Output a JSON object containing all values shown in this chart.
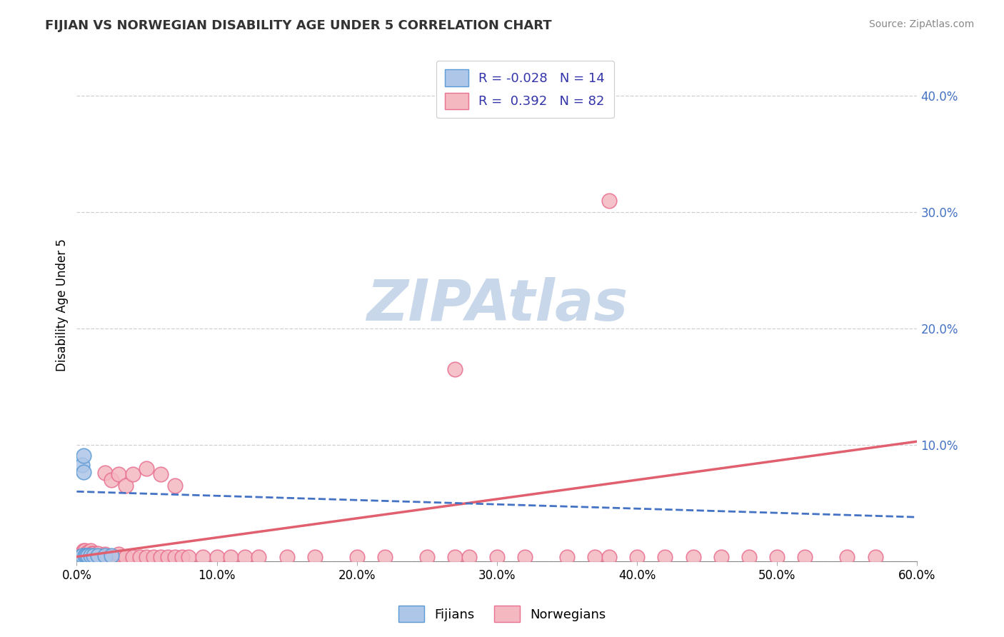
{
  "title": "FIJIAN VS NORWEGIAN DISABILITY AGE UNDER 5 CORRELATION CHART",
  "source": "Source: ZipAtlas.com",
  "ylabel": "Disability Age Under 5",
  "xlim": [
    0.0,
    0.6
  ],
  "ylim": [
    0.0,
    0.44
  ],
  "fijian_color": "#aec6e8",
  "fijian_edge_color": "#5b9bd5",
  "norwegian_color": "#f4b8c1",
  "norwegian_edge_color": "#e87090",
  "fijian_R": -0.028,
  "fijian_N": 14,
  "norwegian_R": 0.392,
  "norwegian_N": 82,
  "fijian_line_color": "#4472c4",
  "norwegian_line_color": "#e06070",
  "background_color": "#ffffff",
  "grid_color": "#bbbbbb",
  "watermark": "ZIPAtlas",
  "watermark_color": "#c8d8ea",
  "legend_label_color": "#3333aa",
  "fij_x": [
    0.002,
    0.003,
    0.004,
    0.004,
    0.005,
    0.005,
    0.006,
    0.007,
    0.008,
    0.01,
    0.012,
    0.015,
    0.02,
    0.025
  ],
  "fij_y": [
    0.004,
    0.004,
    0.005,
    0.083,
    0.077,
    0.091,
    0.005,
    0.005,
    0.005,
    0.005,
    0.005,
    0.005,
    0.005,
    0.005
  ],
  "nor_x": [
    0.002,
    0.003,
    0.003,
    0.004,
    0.004,
    0.005,
    0.005,
    0.005,
    0.006,
    0.006,
    0.006,
    0.007,
    0.007,
    0.008,
    0.008,
    0.009,
    0.009,
    0.01,
    0.01,
    0.01,
    0.011,
    0.011,
    0.012,
    0.012,
    0.013,
    0.015,
    0.015,
    0.016,
    0.017,
    0.018,
    0.02,
    0.02,
    0.02,
    0.022,
    0.025,
    0.025,
    0.03,
    0.03,
    0.03,
    0.035,
    0.035,
    0.04,
    0.04,
    0.045,
    0.05,
    0.05,
    0.055,
    0.06,
    0.06,
    0.065,
    0.07,
    0.07,
    0.075,
    0.08,
    0.09,
    0.1,
    0.11,
    0.12,
    0.13,
    0.15,
    0.17,
    0.2,
    0.22,
    0.25,
    0.27,
    0.28,
    0.3,
    0.32,
    0.35,
    0.37,
    0.38,
    0.4,
    0.42,
    0.44,
    0.46,
    0.48,
    0.5,
    0.52,
    0.55,
    0.57,
    0.38,
    0.27
  ],
  "nor_y": [
    0.004,
    0.004,
    0.006,
    0.004,
    0.007,
    0.004,
    0.006,
    0.009,
    0.004,
    0.006,
    0.009,
    0.004,
    0.007,
    0.004,
    0.008,
    0.004,
    0.006,
    0.004,
    0.006,
    0.009,
    0.004,
    0.007,
    0.004,
    0.007,
    0.004,
    0.004,
    0.007,
    0.004,
    0.004,
    0.004,
    0.004,
    0.006,
    0.076,
    0.004,
    0.004,
    0.07,
    0.004,
    0.006,
    0.075,
    0.004,
    0.065,
    0.004,
    0.075,
    0.004,
    0.004,
    0.08,
    0.004,
    0.004,
    0.075,
    0.004,
    0.004,
    0.065,
    0.004,
    0.004,
    0.004,
    0.004,
    0.004,
    0.004,
    0.004,
    0.004,
    0.004,
    0.004,
    0.004,
    0.004,
    0.004,
    0.004,
    0.004,
    0.004,
    0.004,
    0.004,
    0.004,
    0.004,
    0.004,
    0.004,
    0.004,
    0.004,
    0.004,
    0.004,
    0.004,
    0.004,
    0.31,
    0.165
  ],
  "fij_line_x0": 0.0,
  "fij_line_x1": 0.6,
  "fij_line_y0": 0.06,
  "fij_line_y1": 0.038,
  "nor_line_x0": 0.0,
  "nor_line_x1": 0.6,
  "nor_line_y0": 0.004,
  "nor_line_y1": 0.103
}
